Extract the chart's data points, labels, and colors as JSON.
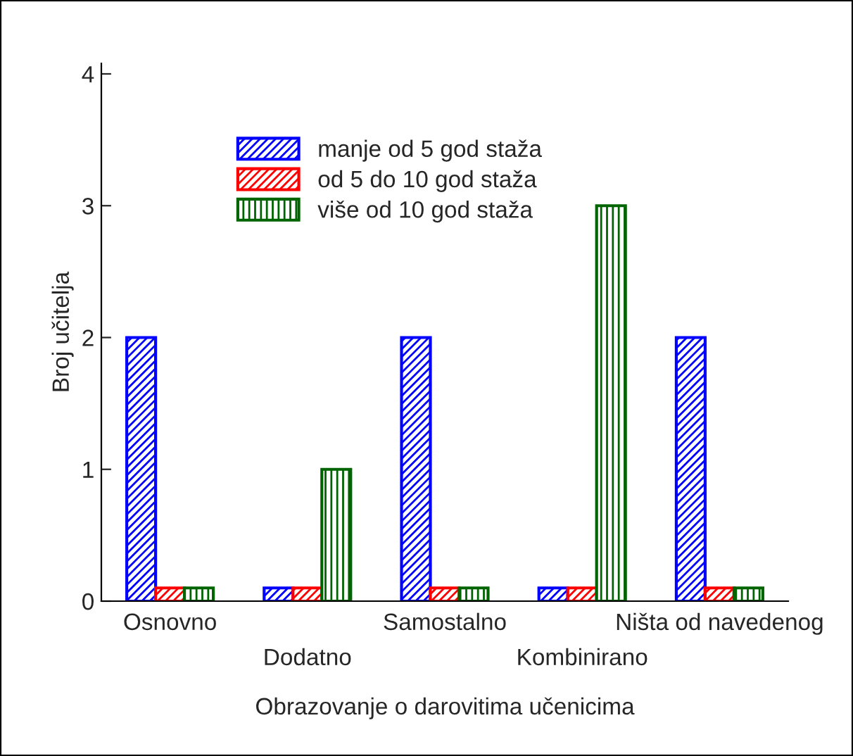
{
  "chart_data": {
    "type": "bar",
    "xlabel": "Obrazovanje o darovitima učenicima",
    "ylabel": "Broj učitelja",
    "categories": [
      "Osnovno",
      "Dodatno",
      "Samostalno",
      "Kombinirano",
      "Ništa od navedenog"
    ],
    "series": [
      {
        "name": "manje od 5 god staža",
        "color": "#0000ff",
        "values": [
          2,
          0.1,
          2,
          0.1,
          2
        ]
      },
      {
        "name": "od 5 do 10 god staža",
        "color": "#ff0000",
        "values": [
          0.1,
          0.1,
          0.1,
          0.1,
          0.1
        ]
      },
      {
        "name": "više od 10 god staža",
        "color": "#006400",
        "values": [
          0.1,
          1,
          0.1,
          3,
          0.1
        ]
      }
    ],
    "ylim": [
      0,
      4.08
    ],
    "yticks": [
      0,
      1,
      2,
      3,
      4
    ],
    "grid": false,
    "legend": "top"
  }
}
